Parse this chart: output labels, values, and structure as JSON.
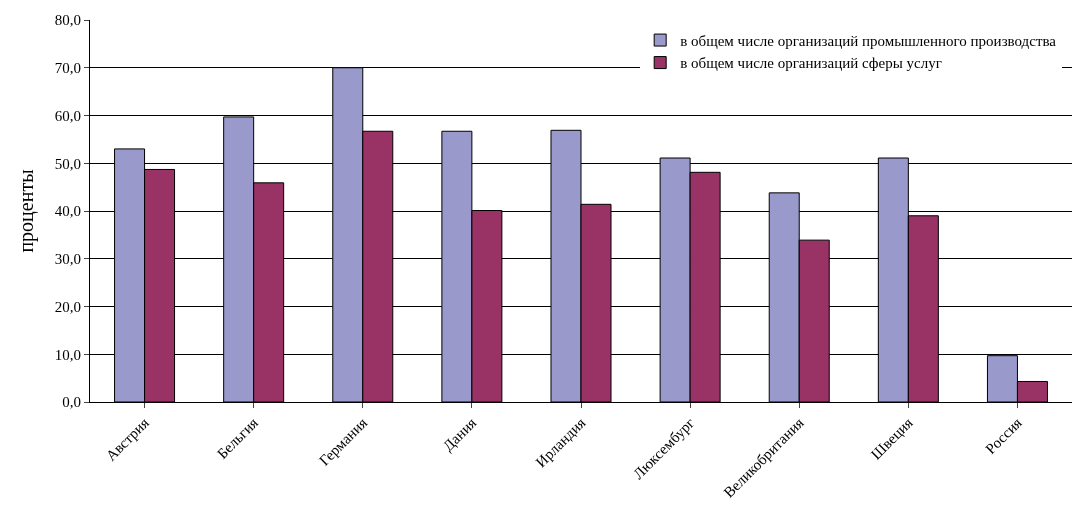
{
  "chart_data": {
    "type": "bar",
    "ylabel": "проценты",
    "categories": [
      "Австрия",
      "Бельгия",
      "Германия",
      "Дания",
      "Ирландия",
      "Люксембург",
      "Великобритания",
      "Швеция",
      "Россия"
    ],
    "series": [
      {
        "name": "в общем числе организаций промышленного производства",
        "color": "#9999cc",
        "values": [
          53.0,
          59.7,
          70.0,
          56.7,
          56.9,
          51.1,
          43.8,
          51.1,
          9.7
        ]
      },
      {
        "name": "в общем числе организаций сферы услуг",
        "color": "#993366",
        "values": [
          48.7,
          45.9,
          56.7,
          40.1,
          41.4,
          48.1,
          33.9,
          39.0,
          4.3
        ]
      }
    ],
    "ylim": [
      0,
      80
    ],
    "yticks": [
      {
        "value": 0,
        "label": "0,0"
      },
      {
        "value": 10,
        "label": "10,0"
      },
      {
        "value": 20,
        "label": "20,0"
      },
      {
        "value": 30,
        "label": "30,0"
      },
      {
        "value": 40,
        "label": "40,0"
      },
      {
        "value": 50,
        "label": "50,0"
      },
      {
        "value": 60,
        "label": "60,0"
      },
      {
        "value": 70,
        "label": "70,0"
      },
      {
        "value": 80,
        "label": "80,0"
      }
    ],
    "grid": "y",
    "legend": "top right"
  }
}
